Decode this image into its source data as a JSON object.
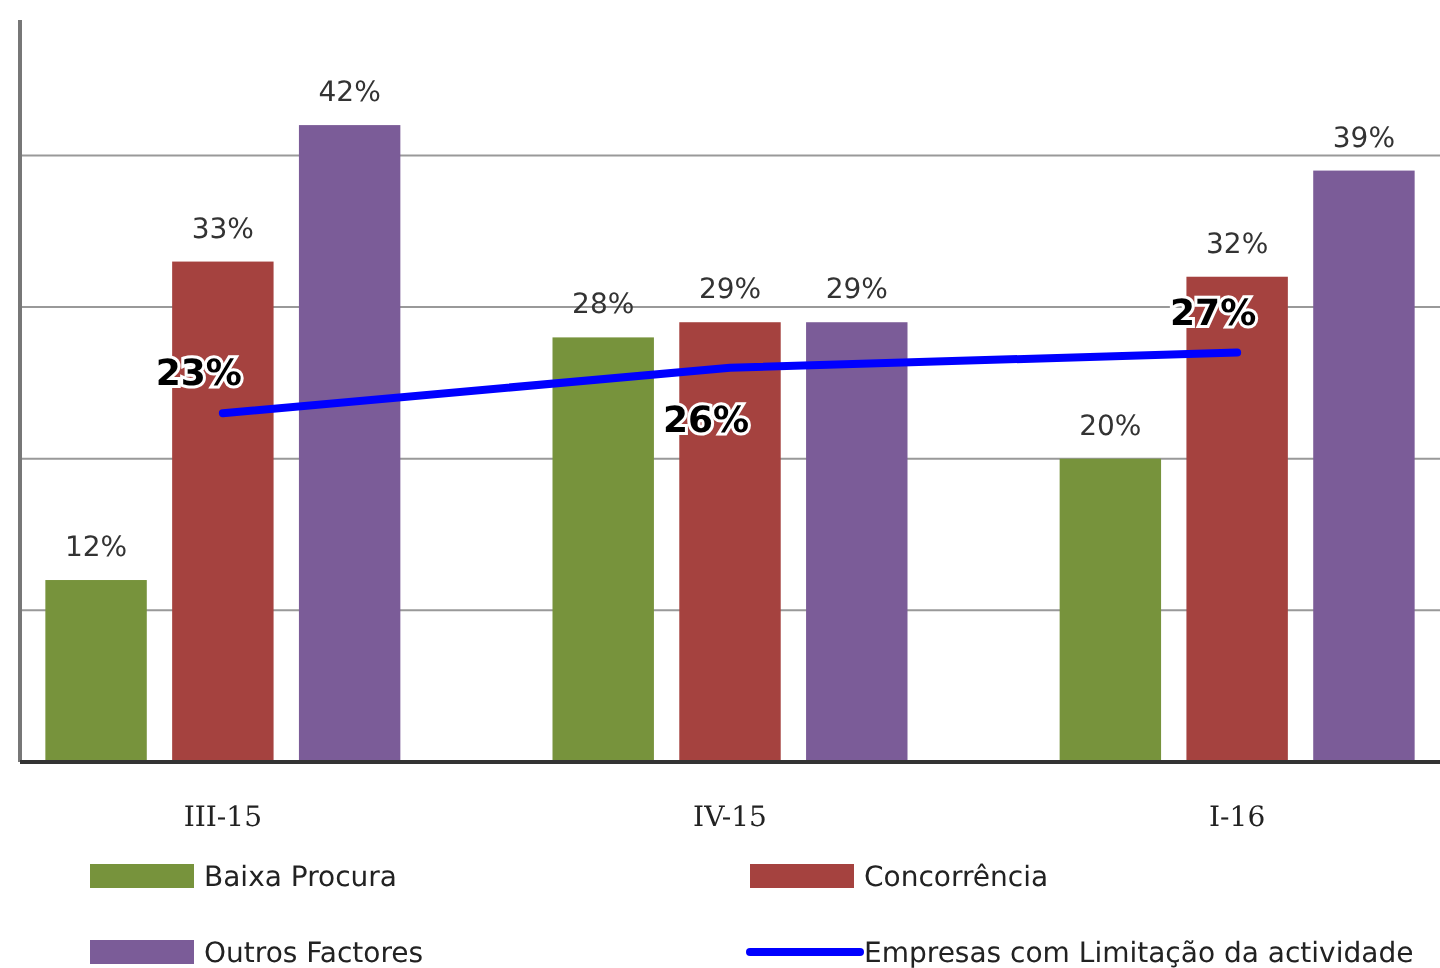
{
  "chart_data": {
    "type": "bar",
    "categories": [
      "III-15",
      "IV-15",
      "I-16"
    ],
    "series": [
      {
        "name": "Baixa Procura",
        "color": "#77933c",
        "values": [
          12,
          28,
          20
        ],
        "value_labels": [
          "12%",
          "28%",
          "20%"
        ]
      },
      {
        "name": "Concorrência",
        "color": "#a5423f",
        "values": [
          33,
          29,
          32
        ],
        "value_labels": [
          "33%",
          "29%",
          "32%"
        ]
      },
      {
        "name": "Outros Factores",
        "color": "#7b5c98",
        "values": [
          42,
          29,
          39
        ],
        "value_labels": [
          "42%",
          "29%",
          "39%"
        ]
      },
      {
        "name": "Empresas com Limitação da actividade",
        "type": "line",
        "color": "#0000ff",
        "values": [
          23,
          26,
          27
        ],
        "value_labels": [
          "23%",
          "26%",
          "27%"
        ]
      }
    ],
    "grid": "y",
    "tick_labels": "x",
    "legend": "bottom",
    "marker": "none"
  }
}
